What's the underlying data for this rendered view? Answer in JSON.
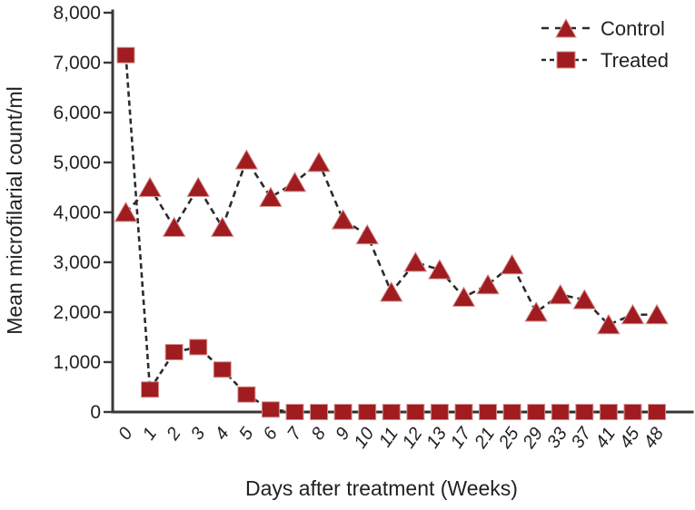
{
  "chart_data": {
    "type": "line",
    "title": "",
    "xlabel": "Days after treatment (Weeks)",
    "ylabel": "Mean microfilarial count/ml",
    "categories": [
      "0",
      "1",
      "2",
      "3",
      "4",
      "5",
      "6",
      "7",
      "8",
      "9",
      "10",
      "11",
      "12",
      "13",
      "17",
      "21",
      "25",
      "29",
      "33",
      "37",
      "41",
      "45",
      "48"
    ],
    "ylim": [
      0,
      8000
    ],
    "y_ticks": [
      {
        "value": 0,
        "label": "0"
      },
      {
        "value": 1000,
        "label": "1,000"
      },
      {
        "value": 2000,
        "label": "2,000"
      },
      {
        "value": 3000,
        "label": "3,000"
      },
      {
        "value": 4000,
        "label": "4,000"
      },
      {
        "value": 5000,
        "label": "5,000"
      },
      {
        "value": 6000,
        "label": "6,000"
      },
      {
        "value": 7000,
        "label": "7,000"
      },
      {
        "value": 8000,
        "label": "8,000"
      }
    ],
    "grid": false,
    "line_style": "dashed",
    "legend_position": "top-right",
    "series": [
      {
        "name": "Control",
        "marker": "triangle",
        "values": [
          4000,
          4500,
          3700,
          4500,
          3700,
          5050,
          4300,
          4600,
          5000,
          3850,
          3550,
          2400,
          3000,
          2850,
          2300,
          2550,
          2950,
          2000,
          2350,
          2250,
          1750,
          1950,
          1950
        ]
      },
      {
        "name": "Treated",
        "marker": "square",
        "values": [
          7150,
          450,
          1200,
          1300,
          850,
          350,
          50,
          0,
          0,
          0,
          0,
          0,
          0,
          0,
          0,
          0,
          0,
          0,
          0,
          0,
          0,
          0,
          0
        ]
      }
    ]
  },
  "colors": {
    "marker": "#a01c20",
    "marker_edge": "#d49390",
    "line": "#2b2b2b",
    "text": "#231f20",
    "axis": "#3b3637"
  }
}
